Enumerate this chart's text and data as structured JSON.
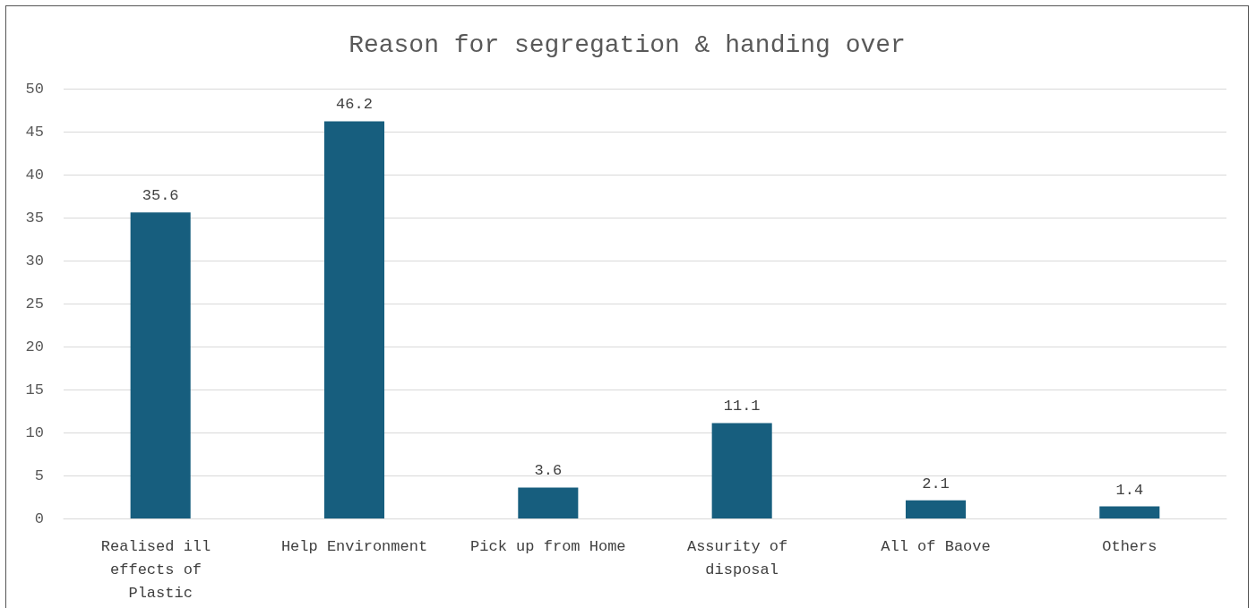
{
  "chart_data": {
    "type": "bar",
    "title": "Reason for segregation & handing over",
    "categories": [
      "Realised ill effects of Plastic",
      "Help Environment",
      "Pick up from Home",
      "Assurity of disposal",
      "All of Baove",
      "Others"
    ],
    "values": [
      35.6,
      46.2,
      3.6,
      11.1,
      2.1,
      1.4
    ],
    "color": "#175e7e",
    "ylim": [
      0,
      50
    ],
    "yticks": [
      0,
      5,
      10,
      15,
      20,
      25,
      30,
      35,
      40,
      45,
      50
    ],
    "grid": "y",
    "data_labels": true
  }
}
